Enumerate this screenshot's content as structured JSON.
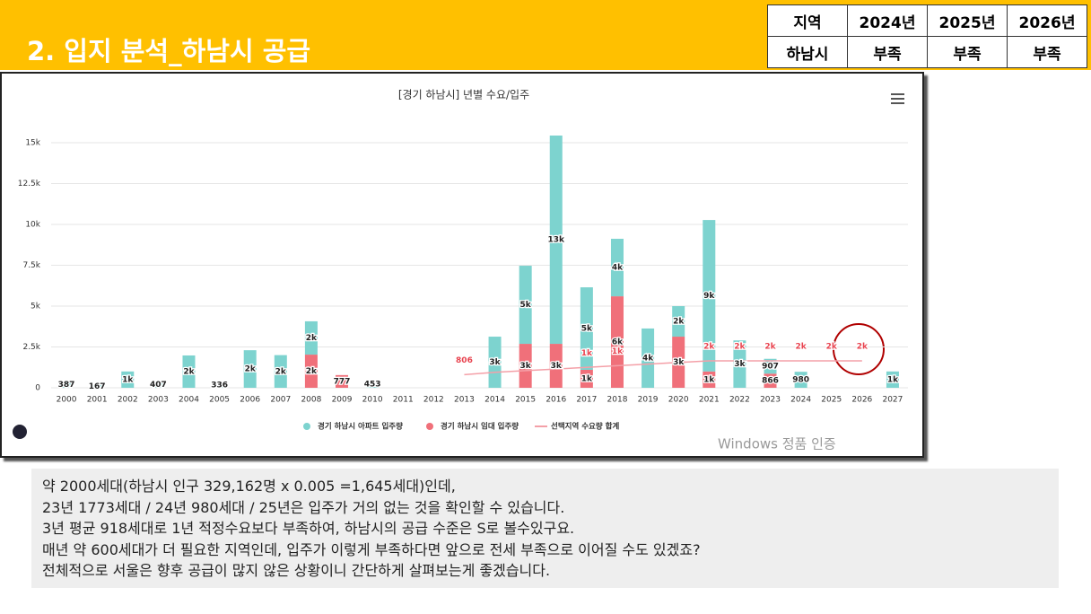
{
  "header": {
    "title": "2. 입지 분석_하남시 공급"
  },
  "table": {
    "header": [
      "지역",
      "2024년",
      "2025년",
      "2026년"
    ],
    "rows": [
      [
        "하남시",
        "부족",
        "부족",
        "부족"
      ]
    ]
  },
  "chart_data": {
    "type": "bar",
    "title": "[경기 하남시] 년별 수요/입주",
    "categories": [
      "2000",
      "2001",
      "2002",
      "2003",
      "2004",
      "2005",
      "2006",
      "2007",
      "2008",
      "2009",
      "2010",
      "2011",
      "2012",
      "2013",
      "2014",
      "2015",
      "2016",
      "2017",
      "2018",
      "2019",
      "2020",
      "2021",
      "2022",
      "2023",
      "2024",
      "2025",
      "2026",
      "2027"
    ],
    "series": [
      {
        "name": "경기 하남시 아파트 입주량",
        "color": "#7dd3cf",
        "stack": true,
        "values": [
          387,
          167,
          1000,
          407,
          1980,
          336,
          2300,
          2000,
          2040,
          0,
          453,
          0,
          0,
          0,
          3130,
          4780,
          12750,
          5050,
          3520,
          3630,
          1870,
          9270,
          2900,
          907,
          980,
          0,
          0,
          1000
        ],
        "value_labels": [
          "387",
          "167",
          "1k",
          "407",
          "2k",
          "336",
          "2k",
          "2k",
          "2k",
          null,
          "453",
          null,
          null,
          null,
          "3k",
          "5k",
          "13k",
          "5k",
          "4k",
          "4k",
          "2k",
          "9k",
          "3k",
          "907",
          "980",
          null,
          null,
          "1k"
        ]
      },
      {
        "name": "경기 하남시 임대 입주량",
        "color": "#f0707a",
        "stack": true,
        "values": [
          0,
          0,
          0,
          0,
          0,
          0,
          0,
          0,
          2030,
          777,
          0,
          0,
          0,
          0,
          0,
          2690,
          2690,
          1100,
          5600,
          0,
          3130,
          1000,
          0,
          866,
          0,
          0,
          0,
          0
        ],
        "value_labels": [
          null,
          null,
          null,
          null,
          null,
          null,
          null,
          null,
          "2k",
          "777",
          null,
          null,
          null,
          null,
          null,
          "3k",
          "3k",
          "1k",
          "6k",
          null,
          "3k",
          "1k",
          null,
          "866",
          null,
          null,
          null,
          null
        ]
      },
      {
        "name": "선택지역 수요량 합계",
        "color": "#f4a0a8",
        "type": "line",
        "values": [
          null,
          null,
          null,
          null,
          null,
          null,
          null,
          null,
          null,
          null,
          null,
          null,
          null,
          806,
          950,
          1050,
          1150,
          1250,
          1350,
          1450,
          1550,
          1645,
          1645,
          1645,
          1645,
          1645,
          1645,
          null
        ],
        "value_labels": [
          null,
          null,
          null,
          null,
          null,
          null,
          null,
          null,
          null,
          null,
          null,
          null,
          null,
          "806",
          null,
          null,
          null,
          "1k",
          "1k",
          null,
          null,
          "2k",
          "2k",
          "2k",
          "2k",
          "2k",
          "2k",
          null
        ]
      }
    ],
    "ylim": [
      0,
      16000
    ],
    "yticks": [
      0,
      {
        "value": 2500,
        "label": "2.5k"
      },
      {
        "value": 5000,
        "label": "5k"
      },
      {
        "value": 7500,
        "label": "7.5k"
      },
      {
        "value": 10000,
        "label": "10k"
      },
      {
        "value": 12500,
        "label": "12.5k"
      },
      {
        "value": 15000,
        "label": "15k"
      }
    ],
    "grid": true,
    "legend": "bottom"
  },
  "watermark": "Windows 정품 인증",
  "notes": [
    "약 2000세대(하남시 인구 329,162명 x 0.005 =1,645세대)인데,",
    "23년  1773세대 / 24년  980세대 / 25년은 입주가 거의 없는 것을 확인할 수 있습니다.",
    "3년 평균 918세대로 1년 적정수요보다 부족하여, 하남시의 공급 수준은 S로 볼수있구요.",
    "매년 약 600세대가 더 필요한 지역인데, 입주가 이렇게 부족하다면 앞으로 전세 부족으로 이어질 수도 있겠죠?",
    "전체적으로 서울은 향후 공급이 많지 않은 상황이니 간단하게 살펴보는게 좋겠습니다."
  ]
}
